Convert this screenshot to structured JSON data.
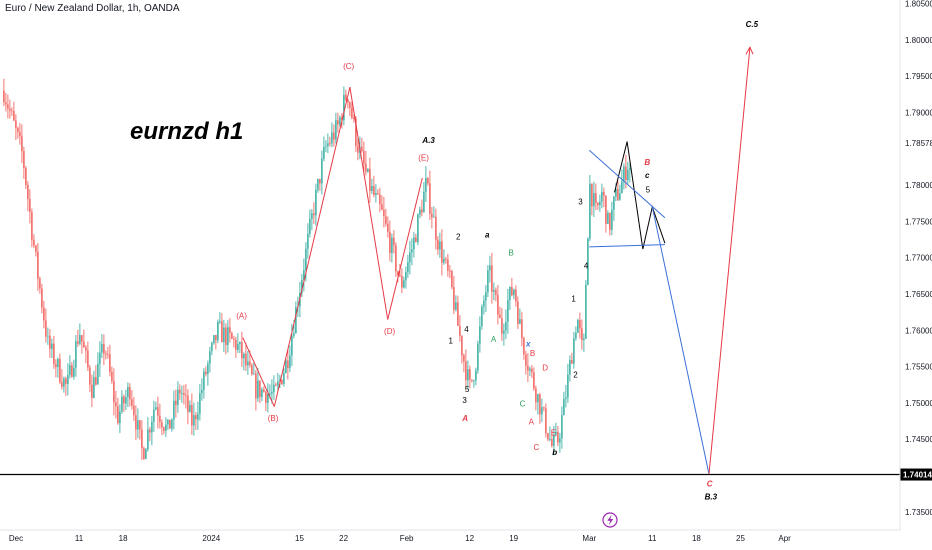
{
  "header": {
    "title": "Euro / New Zealand Dollar, 1h, OANDA"
  },
  "watermark": "eurnzd h1",
  "colors": {
    "bull": "#26a69a",
    "bear": "#ef5350",
    "wave_red": "#e53945",
    "wave_blue": "#3a6fd8",
    "support": "#000000"
  },
  "chart_data": {
    "type": "candlestick",
    "symbol": "EURNZD",
    "timeframe": "1h",
    "ylim": [
      1.7325,
      1.8055
    ],
    "y_ticks": [
      {
        "v": 1.805,
        "label": "1.80500"
      },
      {
        "v": 1.8,
        "label": "1.80000"
      },
      {
        "v": 1.795,
        "label": "1.79500"
      },
      {
        "v": 1.79,
        "label": "1.79000"
      },
      {
        "v": 1.7858,
        "label": "1.78578"
      },
      {
        "v": 1.78,
        "label": "1.78000"
      },
      {
        "v": 1.775,
        "label": "1.77500"
      },
      {
        "v": 1.77,
        "label": "1.77000"
      },
      {
        "v": 1.765,
        "label": "1.76500"
      },
      {
        "v": 1.76,
        "label": "1.76000"
      },
      {
        "v": 1.755,
        "label": "1.75500"
      },
      {
        "v": 1.75,
        "label": "1.75000"
      },
      {
        "v": 1.745,
        "label": "1.74500"
      },
      {
        "v": 1.735,
        "label": "1.73500"
      }
    ],
    "x_ticks": [
      {
        "t": 0,
        "label": "Dec"
      },
      {
        "t": 10,
        "label": "11"
      },
      {
        "t": 17,
        "label": "18"
      },
      {
        "t": 31,
        "label": "2024"
      },
      {
        "t": 45,
        "label": "15"
      },
      {
        "t": 52,
        "label": "22"
      },
      {
        "t": 62,
        "label": "Feb"
      },
      {
        "t": 72,
        "label": "12"
      },
      {
        "t": 79,
        "label": "19"
      },
      {
        "t": 91,
        "label": "Mar"
      },
      {
        "t": 101,
        "label": "11"
      },
      {
        "t": 108,
        "label": "18"
      },
      {
        "t": 115,
        "label": "25"
      },
      {
        "t": 122,
        "label": "Apr"
      }
    ],
    "support_level": {
      "value": 1.74014,
      "label": "1.74014"
    },
    "price_path": [
      [
        -2,
        1.793
      ],
      [
        1,
        1.784
      ],
      [
        3,
        1.77
      ],
      [
        5,
        1.758
      ],
      [
        8,
        1.752
      ],
      [
        10,
        1.76
      ],
      [
        12,
        1.752
      ],
      [
        14,
        1.758
      ],
      [
        16,
        1.748
      ],
      [
        18,
        1.752
      ],
      [
        20,
        1.743
      ],
      [
        22,
        1.75
      ],
      [
        24,
        1.746
      ],
      [
        26,
        1.752
      ],
      [
        28,
        1.747
      ],
      [
        30,
        1.754
      ],
      [
        32,
        1.76
      ],
      [
        35,
        1.758
      ],
      [
        38,
        1.752
      ],
      [
        41,
        1.751
      ],
      [
        43,
        1.756
      ],
      [
        45,
        1.766
      ],
      [
        47,
        1.776
      ],
      [
        49,
        1.785
      ],
      [
        51,
        1.788
      ],
      [
        52.5,
        1.793
      ],
      [
        54,
        1.786
      ],
      [
        56,
        1.78
      ],
      [
        58,
        1.776
      ],
      [
        60,
        1.77
      ],
      [
        61,
        1.766
      ],
      [
        63,
        1.772
      ],
      [
        65,
        1.78
      ],
      [
        66,
        1.776
      ],
      [
        67,
        1.772
      ],
      [
        69,
        1.766
      ],
      [
        70,
        1.761
      ],
      [
        71,
        1.756
      ],
      [
        72,
        1.752
      ],
      [
        73,
        1.756
      ],
      [
        74,
        1.763
      ],
      [
        75,
        1.768
      ],
      [
        76,
        1.764
      ],
      [
        77,
        1.76
      ],
      [
        78,
        1.764
      ],
      [
        79,
        1.766
      ],
      [
        80,
        1.76
      ],
      [
        81,
        1.756
      ],
      [
        82,
        1.753
      ],
      [
        83,
        1.75
      ],
      [
        84,
        1.747
      ],
      [
        85,
        1.744
      ],
      [
        86,
        1.745
      ],
      [
        87,
        1.75
      ],
      [
        88,
        1.756
      ],
      [
        89,
        1.762
      ],
      [
        90,
        1.756
      ],
      [
        90.5,
        1.77
      ],
      [
        91,
        1.78
      ],
      [
        92,
        1.776
      ],
      [
        93,
        1.779
      ],
      [
        94,
        1.774
      ],
      [
        95,
        1.778
      ],
      [
        96,
        1.78
      ],
      [
        97,
        1.783
      ],
      [
        97.5,
        1.782
      ]
    ],
    "series": [
      {
        "name": "",
        "color": "#e53945",
        "points": [
          [
            36,
            1.759
          ],
          [
            41,
            1.7495
          ]
        ]
      },
      {
        "name": "",
        "color": "#e53945",
        "points": [
          [
            41,
            1.7495
          ],
          [
            53,
            1.7935
          ]
        ]
      },
      {
        "name": "",
        "color": "#e53945",
        "points": [
          [
            53,
            1.7935
          ],
          [
            59,
            1.7615
          ]
        ]
      },
      {
        "name": "",
        "color": "#e53945",
        "points": [
          [
            59,
            1.7615
          ],
          [
            64.5,
            1.781
          ]
        ]
      },
      {
        "name": "",
        "color": "#000000",
        "points": [
          [
            95,
            1.779
          ],
          [
            97,
            1.786
          ],
          [
            99.5,
            1.7712
          ],
          [
            101,
            1.777
          ],
          [
            103,
            1.772
          ]
        ]
      },
      {
        "name": "",
        "color": "#3a6fd8",
        "points": [
          [
            91,
            1.7848
          ],
          [
            103,
            1.7755
          ]
        ]
      },
      {
        "name": "",
        "color": "#3a6fd8",
        "points": [
          [
            91,
            1.7715
          ],
          [
            103,
            1.7718
          ]
        ]
      },
      {
        "name": "",
        "color": "#3a6fd8",
        "points": [
          [
            101,
            1.777
          ],
          [
            110,
            1.7402
          ]
        ]
      },
      {
        "name": "",
        "color": "#e53945",
        "points": [
          [
            110,
            1.7402
          ],
          [
            116.5,
            1.799
          ]
        ]
      }
    ],
    "annotations": [
      {
        "t": 35.8,
        "y": 1.7616,
        "text": "(A)",
        "color": "#e53945",
        "size": 7
      },
      {
        "t": 40.8,
        "y": 1.7475,
        "text": "(B)",
        "color": "#e53945",
        "size": 7
      },
      {
        "t": 52.8,
        "y": 1.796,
        "text": "(C)",
        "color": "#e53945",
        "size": 7
      },
      {
        "t": 59.3,
        "y": 1.7595,
        "text": "(D)",
        "color": "#e53945",
        "size": 7
      },
      {
        "t": 64.7,
        "y": 1.7834,
        "text": "(E)",
        "color": "#e53945",
        "size": 7
      },
      {
        "t": 65.5,
        "y": 1.7858,
        "text": "A.3",
        "color": "#000000",
        "size": 9,
        "italic": true
      },
      {
        "t": 70.2,
        "y": 1.7725,
        "text": "2",
        "color": "#000000",
        "size": 7
      },
      {
        "t": 69.0,
        "y": 1.7582,
        "text": "1",
        "color": "#000000",
        "size": 7
      },
      {
        "t": 71.5,
        "y": 1.7598,
        "text": "4",
        "color": "#000000",
        "size": 7
      },
      {
        "t": 71.6,
        "y": 1.7515,
        "text": "5",
        "color": "#000000",
        "size": 7
      },
      {
        "t": 71.2,
        "y": 1.75,
        "text": "3",
        "color": "#000000",
        "size": 7
      },
      {
        "t": 71.3,
        "y": 1.7475,
        "text": "A",
        "color": "#e53945",
        "size": 10,
        "italic": true
      },
      {
        "t": 74.8,
        "y": 1.7728,
        "text": "a",
        "color": "#000000",
        "size": 9,
        "italic": true
      },
      {
        "t": 75.8,
        "y": 1.7584,
        "text": "A",
        "color": "#2a9d5c",
        "size": 7
      },
      {
        "t": 78.6,
        "y": 1.7703,
        "text": "B",
        "color": "#2a9d5c",
        "size": 7
      },
      {
        "t": 81.3,
        "y": 1.7578,
        "text": "x",
        "color": "#3a6fd8",
        "size": 9,
        "italic": true
      },
      {
        "t": 82.0,
        "y": 1.7565,
        "text": "B",
        "color": "#e53945",
        "size": 7
      },
      {
        "t": 84.0,
        "y": 1.7545,
        "text": "D",
        "color": "#e53945",
        "size": 7
      },
      {
        "t": 80.4,
        "y": 1.7495,
        "text": "C",
        "color": "#2a9d5c",
        "size": 7
      },
      {
        "t": 81.8,
        "y": 1.747,
        "text": "A",
        "color": "#e53945",
        "size": 7
      },
      {
        "t": 85.3,
        "y": 1.7455,
        "text": "E",
        "color": "#e53945",
        "size": 7
      },
      {
        "t": 82.6,
        "y": 1.7435,
        "text": "C",
        "color": "#e53945",
        "size": 7
      },
      {
        "t": 85.5,
        "y": 1.7428,
        "text": "b",
        "color": "#000000",
        "size": 9,
        "italic": true
      },
      {
        "t": 88.8,
        "y": 1.7535,
        "text": "2",
        "color": "#000000",
        "size": 7
      },
      {
        "t": 88.5,
        "y": 1.764,
        "text": "1",
        "color": "#000000",
        "size": 7
      },
      {
        "t": 89.6,
        "y": 1.7773,
        "text": "3",
        "color": "#000000",
        "size": 7
      },
      {
        "t": 90.5,
        "y": 1.7685,
        "text": "4",
        "color": "#000000",
        "size": 7
      },
      {
        "t": 100.2,
        "y": 1.7828,
        "text": "B",
        "color": "#e53945",
        "size": 9,
        "italic": true
      },
      {
        "t": 100.2,
        "y": 1.781,
        "text": "c",
        "color": "#000000",
        "size": 9,
        "italic": true
      },
      {
        "t": 100.3,
        "y": 1.779,
        "text": "5",
        "color": "#000000",
        "size": 7
      },
      {
        "t": 116.8,
        "y": 1.8018,
        "text": "C.5",
        "color": "#000000",
        "size": 9,
        "italic": true
      },
      {
        "t": 110.1,
        "y": 1.7385,
        "text": "C",
        "color": "#e53945",
        "size": 9,
        "italic": true
      },
      {
        "t": 110.3,
        "y": 1.7367,
        "text": "B.3",
        "color": "#000000",
        "size": 9,
        "italic": true
      }
    ]
  }
}
